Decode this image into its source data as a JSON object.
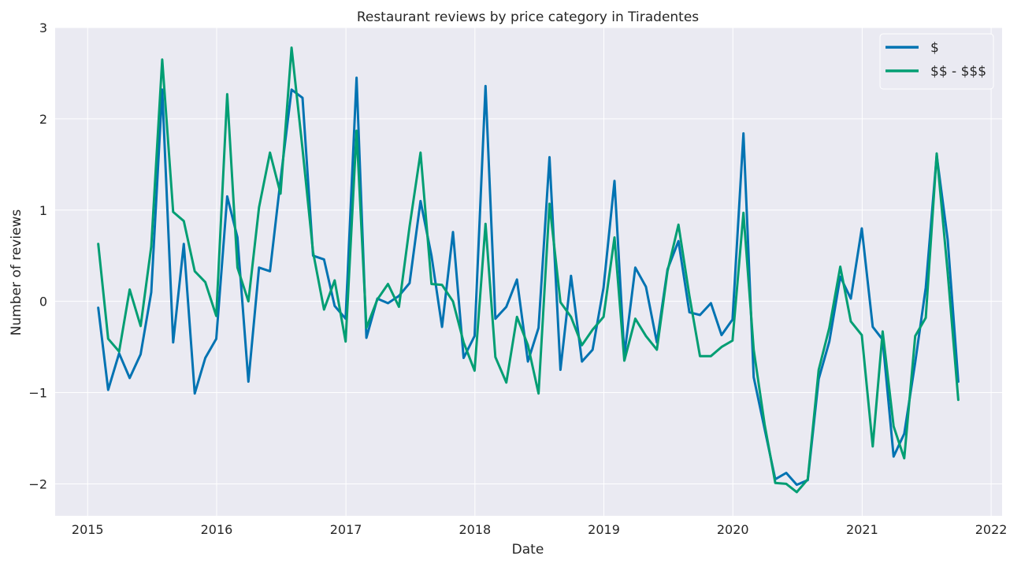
{
  "chart_data": {
    "type": "line",
    "title": "Restaurant reviews by price category in Tiradentes",
    "xlabel": "Date",
    "ylabel": "Number of reviews",
    "xlim": [
      "2014-10-01",
      "2022-02-01"
    ],
    "ylim": [
      -2.35,
      3.0
    ],
    "x_ticks": [
      "2015-01-01",
      "2016-01-01",
      "2017-01-01",
      "2018-01-01",
      "2019-01-01",
      "2020-01-01",
      "2021-01-01",
      "2022-01-01"
    ],
    "x_tick_labels": [
      "2015",
      "2016",
      "2017",
      "2018",
      "2019",
      "2020",
      "2021",
      "2022"
    ],
    "y_ticks": [
      -2,
      -1,
      0,
      1,
      2,
      3
    ],
    "y_tick_labels": [
      "−2",
      "−1",
      "0",
      "1",
      "2",
      "3"
    ],
    "grid": true,
    "legend_position": "top-right",
    "x": [
      "2015-01-31",
      "2015-02-28",
      "2015-03-31",
      "2015-04-30",
      "2015-05-31",
      "2015-06-30",
      "2015-07-31",
      "2015-08-31",
      "2015-09-30",
      "2015-10-31",
      "2015-11-30",
      "2015-12-31",
      "2016-01-31",
      "2016-02-29",
      "2016-03-31",
      "2016-04-30",
      "2016-05-31",
      "2016-06-30",
      "2016-07-31",
      "2016-08-31",
      "2016-09-30",
      "2016-10-31",
      "2016-11-30",
      "2016-12-31",
      "2017-01-31",
      "2017-02-28",
      "2017-03-31",
      "2017-04-30",
      "2017-05-31",
      "2017-06-30",
      "2017-07-31",
      "2017-08-31",
      "2017-09-30",
      "2017-10-31",
      "2017-11-30",
      "2017-12-31",
      "2018-01-31",
      "2018-02-28",
      "2018-03-31",
      "2018-04-30",
      "2018-05-31",
      "2018-06-30",
      "2018-07-31",
      "2018-08-31",
      "2018-09-30",
      "2018-10-31",
      "2018-11-30",
      "2018-12-31",
      "2019-01-31",
      "2019-02-28",
      "2019-03-31",
      "2019-04-30",
      "2019-05-31",
      "2019-06-30",
      "2019-07-31",
      "2019-08-31",
      "2019-09-30",
      "2019-10-31",
      "2019-11-30",
      "2019-12-31",
      "2020-01-31",
      "2020-02-29",
      "2020-03-31",
      "2020-04-30",
      "2020-05-31",
      "2020-06-30",
      "2020-07-31",
      "2020-08-31",
      "2020-09-30",
      "2020-10-31",
      "2020-11-30",
      "2020-12-31",
      "2021-01-31",
      "2021-02-28",
      "2021-03-31",
      "2021-04-30",
      "2021-05-31",
      "2021-06-30",
      "2021-07-31",
      "2021-08-31",
      "2021-09-30"
    ],
    "series": [
      {
        "name": "$",
        "color": "#0173b2",
        "values": [
          -0.07,
          -0.97,
          -0.57,
          -0.84,
          -0.58,
          0.1,
          2.32,
          -0.45,
          0.63,
          -1.01,
          -0.62,
          -0.41,
          1.15,
          0.7,
          -0.88,
          0.37,
          0.33,
          1.33,
          2.32,
          2.23,
          0.5,
          0.46,
          -0.05,
          -0.19,
          2.45,
          -0.4,
          0.03,
          -0.02,
          0.06,
          0.2,
          1.1,
          0.5,
          -0.28,
          0.76,
          -0.62,
          -0.38,
          2.36,
          -0.19,
          -0.06,
          0.24,
          -0.66,
          -0.29,
          1.58,
          -0.75,
          0.28,
          -0.66,
          -0.53,
          0.15,
          1.32,
          -0.59,
          0.37,
          0.16,
          -0.45,
          0.35,
          0.66,
          -0.12,
          -0.15,
          -0.02,
          -0.37,
          -0.2,
          1.84,
          -0.83,
          -1.4,
          -1.95,
          -1.88,
          -2.01,
          -1.96,
          -0.85,
          -0.44,
          0.27,
          0.03,
          0.8,
          -0.28,
          -0.42,
          -1.7,
          -1.45,
          -0.67,
          0.15,
          1.6,
          0.68,
          -0.88
        ]
      },
      {
        "name": "$$ - $$$",
        "color": "#029e73",
        "values": [
          0.63,
          -0.41,
          -0.55,
          0.13,
          -0.27,
          0.6,
          2.65,
          0.98,
          0.88,
          0.33,
          0.21,
          -0.16,
          2.27,
          0.37,
          0.0,
          1.03,
          1.63,
          1.18,
          2.78,
          1.67,
          0.54,
          -0.09,
          0.23,
          -0.44,
          1.87,
          -0.29,
          0.02,
          0.19,
          -0.06,
          0.82,
          1.63,
          0.19,
          0.18,
          0.0,
          -0.45,
          -0.76,
          0.85,
          -0.61,
          -0.89,
          -0.17,
          -0.48,
          -1.01,
          1.07,
          -0.01,
          -0.17,
          -0.48,
          -0.31,
          -0.17,
          0.7,
          -0.65,
          -0.19,
          -0.38,
          -0.53,
          0.33,
          0.84,
          0.06,
          -0.6,
          -0.6,
          -0.5,
          -0.43,
          0.97,
          -0.53,
          -1.35,
          -1.99,
          -2.0,
          -2.09,
          -1.95,
          -0.75,
          -0.29,
          0.38,
          -0.22,
          -0.37,
          -1.59,
          -0.33,
          -1.37,
          -1.72,
          -0.38,
          -0.18,
          1.62,
          0.32,
          -1.08
        ]
      }
    ]
  }
}
